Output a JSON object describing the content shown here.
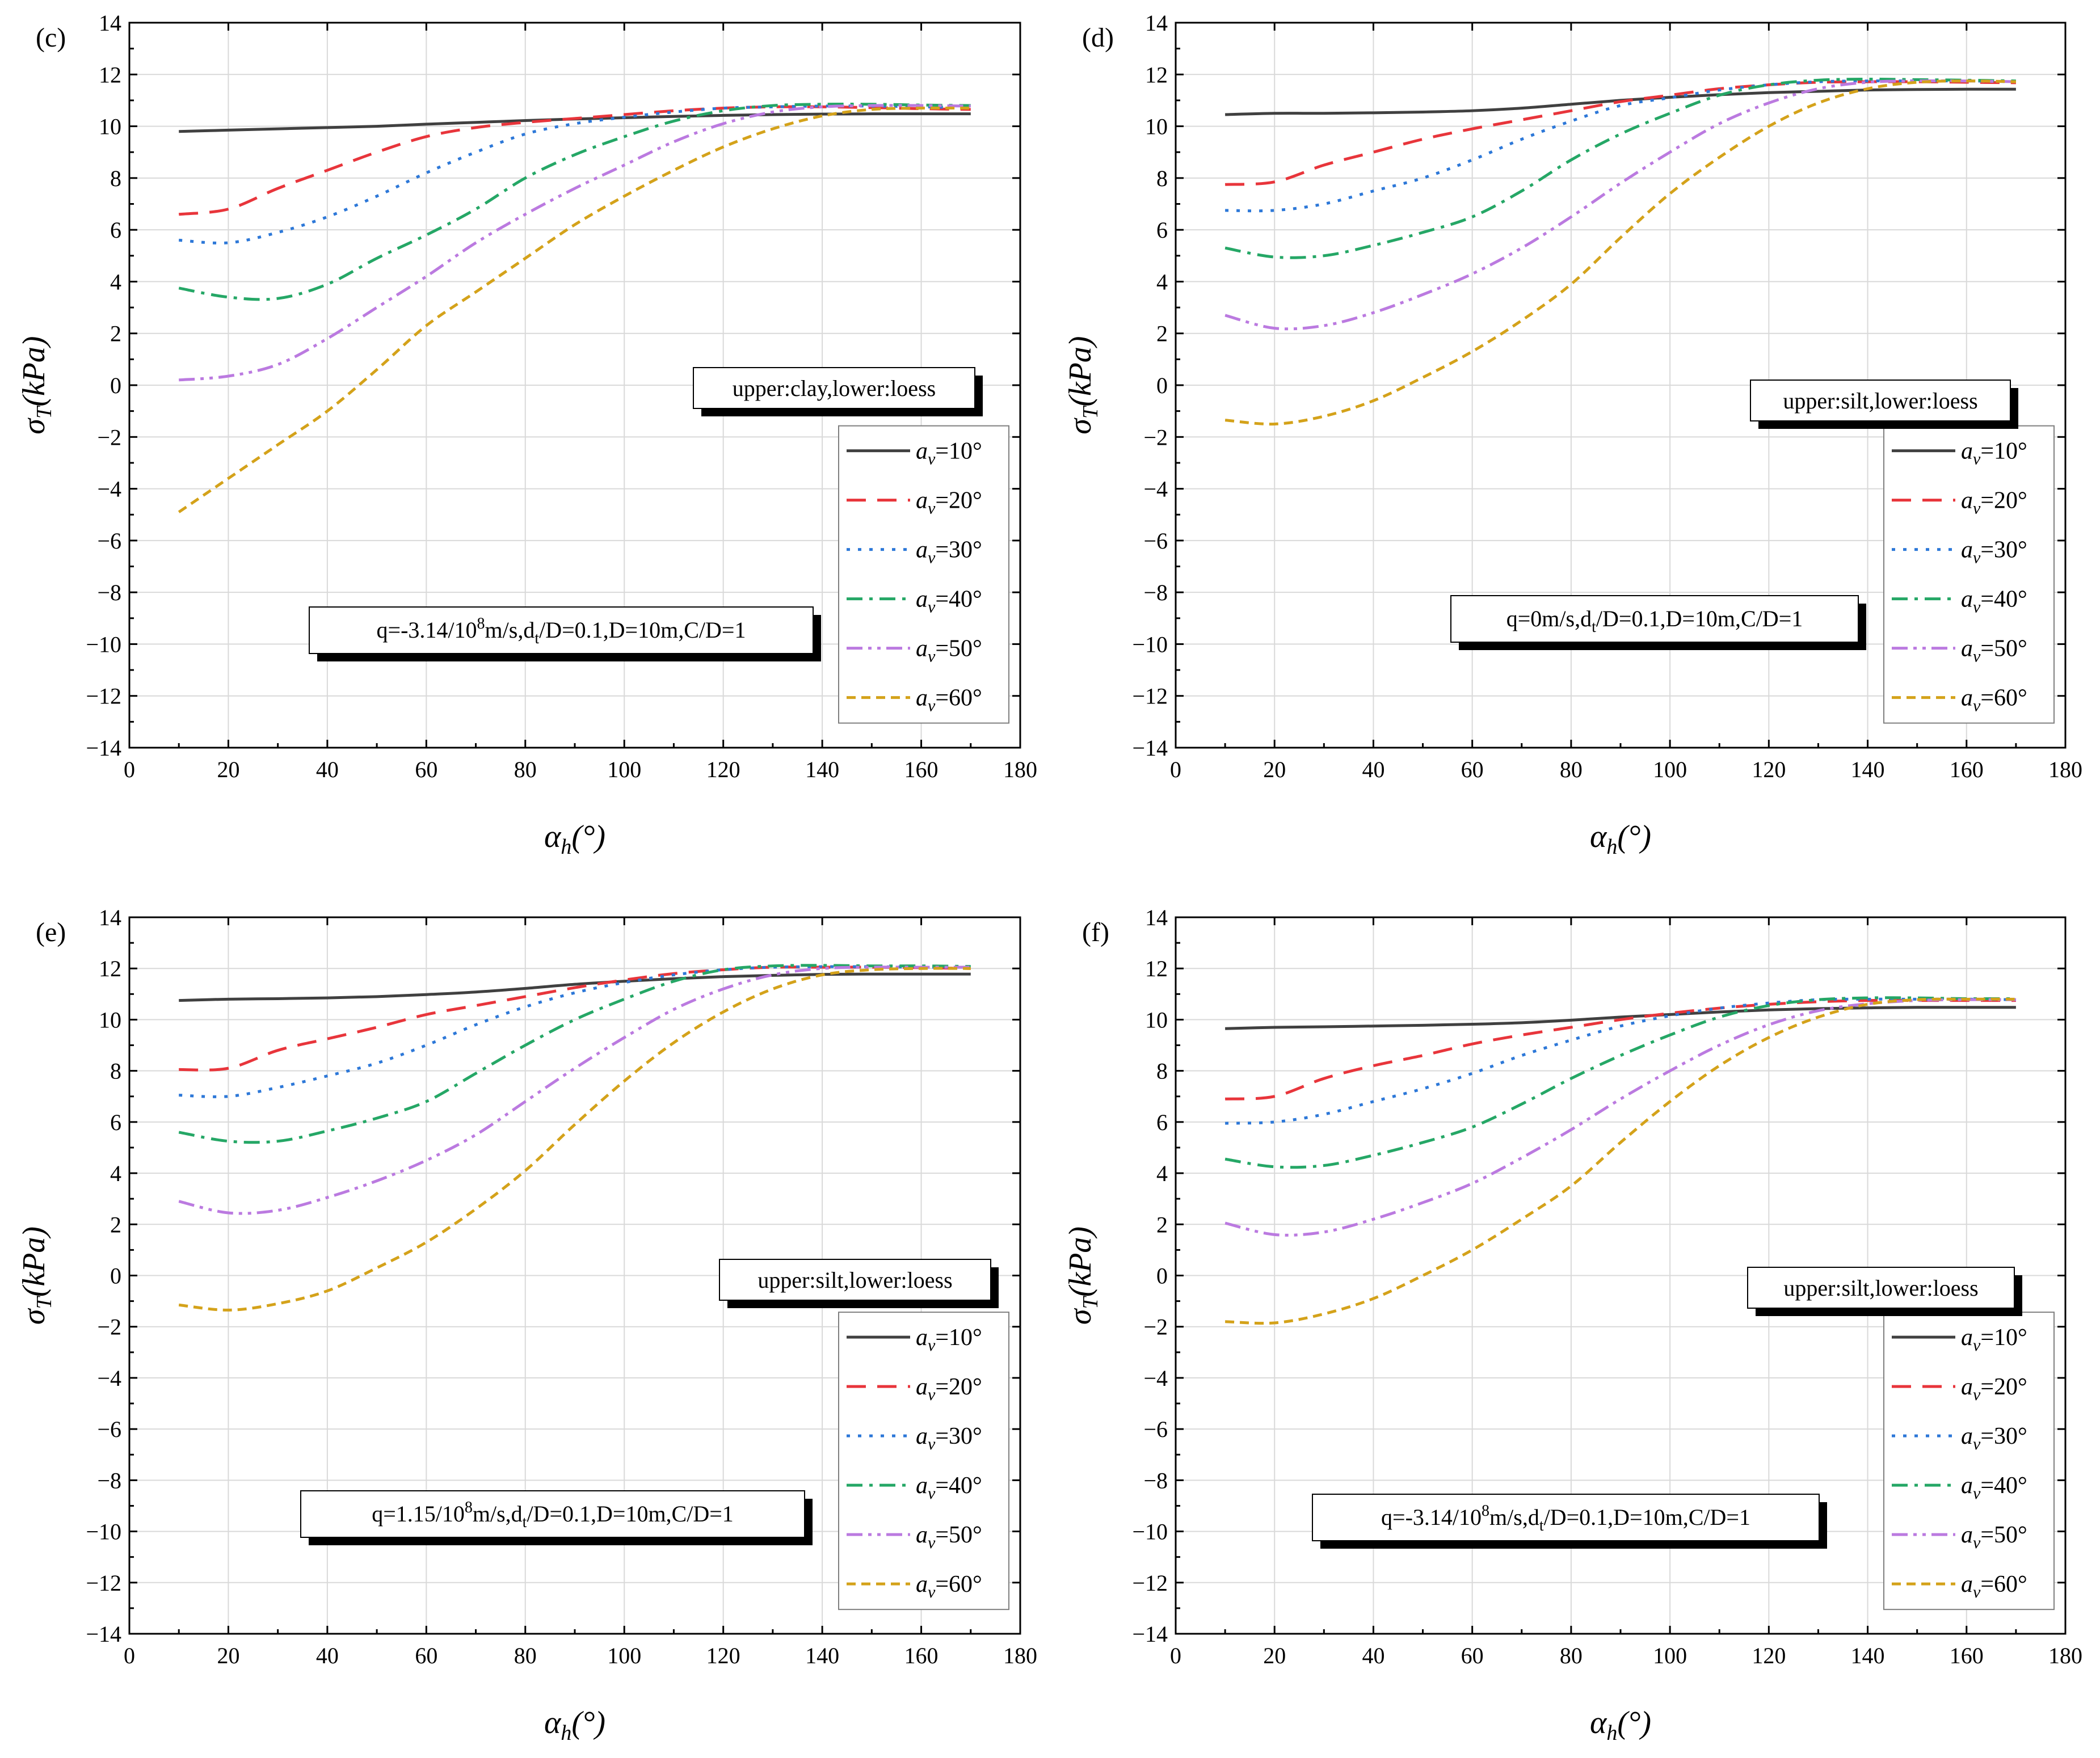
{
  "figure": {
    "x_axis_label": "α",
    "x_axis_sub": "h",
    "x_axis_unit": "(°)",
    "y_axis_label": "σ",
    "y_axis_sub": "T",
    "y_axis_unit": "(kPa)",
    "legend_prefix": "a",
    "legend_sub": "v",
    "legend_suffix": "°",
    "series_colors": [
      "#404040",
      "#e8353b",
      "#2d78d8",
      "#25a766",
      "#bb7ae0",
      "#d4a21a"
    ],
    "series_styles": [
      "solid",
      "long-dash",
      "dot",
      "dash-dot",
      "dash-dot-dot",
      "short-dash"
    ]
  },
  "chart_data": [
    {
      "type": "line",
      "panel_label": "(c)",
      "soil_note": "upper:clay,lower:loess",
      "cond_pre": "q=-3.14/10",
      "cond_sup": "8",
      "cond_mid": "m/s,d",
      "cond_sub": "t",
      "cond_post": "/D=0.1,D=10m,C/D=1",
      "xlim": [
        0,
        180
      ],
      "ylim": [
        -14,
        14
      ],
      "xticks": [
        "0",
        "20",
        "40",
        "60",
        "80",
        "100",
        "120",
        "140",
        "160",
        "180"
      ],
      "yticks": [
        "−14",
        "−12",
        "−10",
        "−8",
        "−6",
        "−4",
        "−2",
        "0",
        "2",
        "4",
        "6",
        "8",
        "10",
        "12",
        "14"
      ],
      "x": [
        10,
        20,
        30,
        40,
        50,
        60,
        70,
        80,
        90,
        100,
        110,
        120,
        130,
        140,
        150,
        160,
        170
      ],
      "series": [
        {
          "name": "10",
          "values": [
            9.8,
            9.85,
            9.9,
            9.95,
            10.0,
            10.08,
            10.15,
            10.22,
            10.28,
            10.33,
            10.38,
            10.42,
            10.45,
            10.47,
            10.48,
            10.48,
            10.48
          ]
        },
        {
          "name": "20",
          "values": [
            6.6,
            6.8,
            7.6,
            8.3,
            9.0,
            9.6,
            9.95,
            10.15,
            10.3,
            10.45,
            10.6,
            10.7,
            10.75,
            10.75,
            10.72,
            10.68,
            10.65
          ]
        },
        {
          "name": "30",
          "values": [
            5.6,
            5.5,
            5.9,
            6.5,
            7.3,
            8.2,
            9.0,
            9.7,
            10.1,
            10.35,
            10.55,
            10.7,
            10.75,
            10.78,
            10.78,
            10.75,
            10.72
          ]
        },
        {
          "name": "40",
          "values": [
            3.75,
            3.4,
            3.35,
            3.9,
            4.9,
            5.8,
            6.8,
            8.0,
            8.9,
            9.6,
            10.2,
            10.6,
            10.8,
            10.85,
            10.85,
            10.82,
            10.8
          ]
        },
        {
          "name": "50",
          "values": [
            0.2,
            0.35,
            0.8,
            1.8,
            3.0,
            4.2,
            5.5,
            6.6,
            7.6,
            8.5,
            9.4,
            10.1,
            10.55,
            10.75,
            10.8,
            10.8,
            10.78
          ]
        },
        {
          "name": "60",
          "values": [
            -4.9,
            -3.6,
            -2.3,
            -1.0,
            0.6,
            2.3,
            3.6,
            4.9,
            6.2,
            7.3,
            8.3,
            9.2,
            9.9,
            10.4,
            10.65,
            10.7,
            10.7
          ]
        }
      ]
    },
    {
      "type": "line",
      "panel_label": "(d)",
      "soil_note": "upper:silt,lower:loess",
      "cond_pre": "q=0m/s,d",
      "cond_sup": "",
      "cond_mid": "",
      "cond_sub": "t",
      "cond_post": "/D=0.1,D=10m,C/D=1",
      "xlim": [
        0,
        180
      ],
      "ylim": [
        -14,
        14
      ],
      "xticks": [
        "0",
        "20",
        "40",
        "60",
        "80",
        "100",
        "120",
        "140",
        "160",
        "180"
      ],
      "yticks": [
        "−14",
        "−12",
        "−10",
        "−8",
        "−6",
        "−4",
        "−2",
        "0",
        "2",
        "4",
        "6",
        "8",
        "10",
        "12",
        "14"
      ],
      "x": [
        10,
        20,
        30,
        40,
        50,
        60,
        70,
        80,
        90,
        100,
        110,
        120,
        130,
        140,
        150,
        160,
        170
      ],
      "series": [
        {
          "name": "10",
          "values": [
            10.45,
            10.5,
            10.5,
            10.52,
            10.55,
            10.6,
            10.7,
            10.85,
            11.0,
            11.12,
            11.22,
            11.3,
            11.35,
            11.4,
            11.42,
            11.43,
            11.43
          ]
        },
        {
          "name": "20",
          "values": [
            7.75,
            7.85,
            8.5,
            9.0,
            9.5,
            9.9,
            10.25,
            10.6,
            10.95,
            11.2,
            11.45,
            11.6,
            11.7,
            11.72,
            11.72,
            11.7,
            11.68
          ]
        },
        {
          "name": "30",
          "values": [
            6.75,
            6.75,
            7.0,
            7.5,
            8.0,
            8.7,
            9.5,
            10.2,
            10.8,
            11.1,
            11.4,
            11.6,
            11.72,
            11.75,
            11.75,
            11.75,
            11.72
          ]
        },
        {
          "name": "40",
          "values": [
            5.3,
            4.95,
            5.0,
            5.4,
            5.9,
            6.5,
            7.5,
            8.7,
            9.7,
            10.5,
            11.2,
            11.6,
            11.78,
            11.82,
            11.8,
            11.78,
            11.75
          ]
        },
        {
          "name": "50",
          "values": [
            2.7,
            2.2,
            2.3,
            2.8,
            3.5,
            4.3,
            5.3,
            6.5,
            7.8,
            9.0,
            10.1,
            10.9,
            11.45,
            11.7,
            11.75,
            11.75,
            11.72
          ]
        },
        {
          "name": "60",
          "values": [
            -1.35,
            -1.5,
            -1.2,
            -0.6,
            0.3,
            1.3,
            2.5,
            3.9,
            5.7,
            7.4,
            8.8,
            10.0,
            10.9,
            11.45,
            11.7,
            11.75,
            11.72
          ]
        }
      ]
    },
    {
      "type": "line",
      "panel_label": "(e)",
      "soil_note": "upper:silt,lower:loess",
      "cond_pre": "q=1.15/10",
      "cond_sup": "8",
      "cond_mid": "m/s,d",
      "cond_sub": "t",
      "cond_post": "/D=0.1,D=10m,C/D=1",
      "xlim": [
        0,
        180
      ],
      "ylim": [
        -14,
        14
      ],
      "xticks": [
        "0",
        "20",
        "40",
        "60",
        "80",
        "100",
        "120",
        "140",
        "160",
        "180"
      ],
      "yticks": [
        "−14",
        "−12",
        "−10",
        "−8",
        "−6",
        "−4",
        "−2",
        "0",
        "2",
        "4",
        "6",
        "8",
        "10",
        "12",
        "14"
      ],
      "x": [
        10,
        20,
        30,
        40,
        50,
        60,
        70,
        80,
        90,
        100,
        110,
        120,
        130,
        140,
        150,
        160,
        170
      ],
      "series": [
        {
          "name": "10",
          "values": [
            10.75,
            10.8,
            10.82,
            10.85,
            10.9,
            10.98,
            11.08,
            11.22,
            11.38,
            11.5,
            11.6,
            11.68,
            11.73,
            11.77,
            11.78,
            11.78,
            11.78
          ]
        },
        {
          "name": "20",
          "values": [
            8.05,
            8.1,
            8.8,
            9.25,
            9.7,
            10.2,
            10.55,
            10.9,
            11.25,
            11.55,
            11.8,
            11.95,
            12.05,
            12.05,
            12.05,
            12.03,
            12.0
          ]
        },
        {
          "name": "30",
          "values": [
            7.05,
            7.0,
            7.35,
            7.8,
            8.3,
            9.0,
            9.8,
            10.5,
            11.05,
            11.45,
            11.75,
            11.95,
            12.05,
            12.07,
            12.07,
            12.05,
            12.05
          ]
        },
        {
          "name": "40",
          "values": [
            5.6,
            5.25,
            5.25,
            5.65,
            6.15,
            6.8,
            7.9,
            9.0,
            10.0,
            10.8,
            11.5,
            11.95,
            12.1,
            12.12,
            12.1,
            12.1,
            12.08
          ]
        },
        {
          "name": "50",
          "values": [
            2.9,
            2.45,
            2.55,
            3.05,
            3.7,
            4.5,
            5.5,
            6.8,
            8.1,
            9.3,
            10.4,
            11.2,
            11.75,
            12.0,
            12.05,
            12.05,
            12.05
          ]
        },
        {
          "name": "60",
          "values": [
            -1.15,
            -1.35,
            -1.1,
            -0.6,
            0.3,
            1.3,
            2.6,
            4.1,
            5.9,
            7.6,
            9.1,
            10.3,
            11.2,
            11.75,
            11.95,
            12.0,
            12.0
          ]
        }
      ]
    },
    {
      "type": "line",
      "panel_label": "(f)",
      "soil_note": "upper:silt,lower:loess",
      "cond_pre": "q=-3.14/10",
      "cond_sup": "8",
      "cond_mid": "m/s,d",
      "cond_sub": "t",
      "cond_post": "/D=0.1,D=10m,C/D=1",
      "xlim": [
        0,
        180
      ],
      "ylim": [
        -14,
        14
      ],
      "xticks": [
        "0",
        "20",
        "40",
        "60",
        "80",
        "100",
        "120",
        "140",
        "160",
        "180"
      ],
      "yticks": [
        "−14",
        "−12",
        "−10",
        "−8",
        "−6",
        "−4",
        "−2",
        "0",
        "2",
        "4",
        "6",
        "8",
        "10",
        "12",
        "14"
      ],
      "x": [
        10,
        20,
        30,
        40,
        50,
        60,
        70,
        80,
        90,
        100,
        110,
        120,
        130,
        140,
        150,
        160,
        170
      ],
      "series": [
        {
          "name": "10",
          "values": [
            9.65,
            9.7,
            9.72,
            9.75,
            9.78,
            9.82,
            9.88,
            9.98,
            10.1,
            10.2,
            10.3,
            10.38,
            10.43,
            10.46,
            10.48,
            10.48,
            10.48
          ]
        },
        {
          "name": "20",
          "values": [
            6.9,
            7.0,
            7.7,
            8.2,
            8.6,
            9.05,
            9.4,
            9.7,
            10.0,
            10.25,
            10.45,
            10.6,
            10.7,
            10.75,
            10.75,
            10.75,
            10.75
          ]
        },
        {
          "name": "30",
          "values": [
            5.95,
            6.0,
            6.3,
            6.8,
            7.3,
            7.9,
            8.6,
            9.2,
            9.75,
            10.15,
            10.45,
            10.65,
            10.78,
            10.8,
            10.8,
            10.8,
            10.78
          ]
        },
        {
          "name": "40",
          "values": [
            4.55,
            4.25,
            4.3,
            4.7,
            5.2,
            5.8,
            6.7,
            7.7,
            8.6,
            9.4,
            10.1,
            10.55,
            10.78,
            10.85,
            10.85,
            10.82,
            10.82
          ]
        },
        {
          "name": "50",
          "values": [
            2.05,
            1.6,
            1.7,
            2.2,
            2.85,
            3.6,
            4.6,
            5.7,
            6.9,
            8.0,
            9.0,
            9.8,
            10.35,
            10.62,
            10.75,
            10.78,
            10.78
          ]
        },
        {
          "name": "60",
          "values": [
            -1.8,
            -1.85,
            -1.5,
            -0.9,
            0.0,
            1.0,
            2.2,
            3.5,
            5.2,
            6.8,
            8.2,
            9.3,
            10.1,
            10.6,
            10.78,
            10.8,
            10.8
          ]
        }
      ]
    }
  ]
}
